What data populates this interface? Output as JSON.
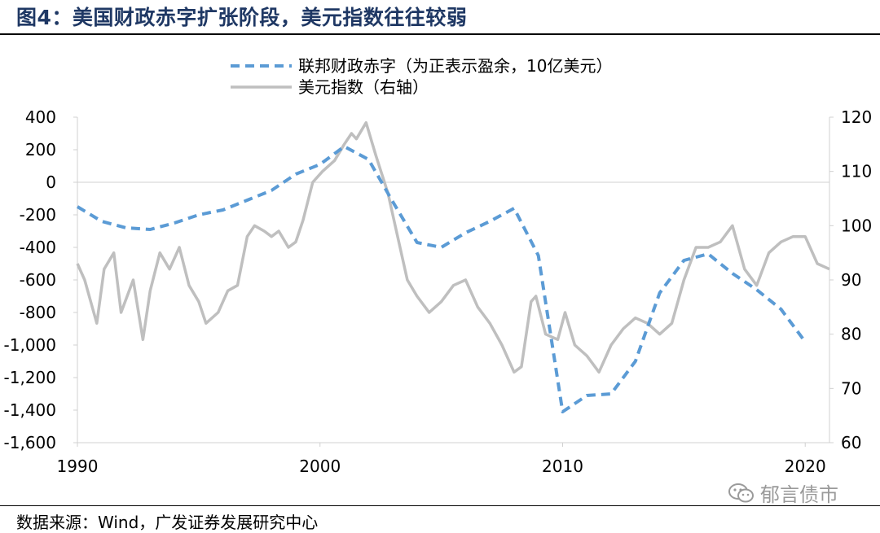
{
  "title": "图4：美国财政赤字扩张阶段，美元指数往往较弱",
  "source": "数据来源：Wind，广发证券发展研究中心",
  "watermark": "郁言债市",
  "chart_data": {
    "type": "line",
    "grid": false,
    "legend_position": "top-center",
    "x_ticks": [
      1990,
      2000,
      2010,
      2020
    ],
    "xlim": [
      1990,
      2021
    ],
    "y_left": {
      "ylim": [
        -1600,
        400
      ],
      "ticks": [
        400,
        200,
        0,
        -200,
        -400,
        -600,
        -800,
        -1000,
        -1200,
        -1400,
        -1600
      ],
      "tick_labels": [
        "400",
        "200",
        "0",
        "-200",
        "-400",
        "-600",
        "-800",
        "-1,000",
        "-1,200",
        "-1,400",
        "-1,600"
      ]
    },
    "y_right": {
      "ylim": [
        60,
        120
      ],
      "ticks": [
        120,
        110,
        100,
        90,
        80,
        70,
        60
      ],
      "tick_labels": [
        "120",
        "110",
        "100",
        "90",
        "80",
        "70",
        "60"
      ]
    },
    "series": [
      {
        "name": "联邦财政赤字（为正表示盈余，10亿美元）",
        "axis": "left",
        "color": "#5b9bd5",
        "style": "dashed",
        "x": [
          1990,
          1991,
          1992,
          1993,
          1994,
          1995,
          1996,
          1997,
          1998,
          1999,
          2000,
          2001,
          2002,
          2003,
          2004,
          2005,
          2006,
          2007,
          2008,
          2009,
          2010,
          2011,
          2012,
          2013,
          2014,
          2015,
          2016,
          2017,
          2018,
          2019,
          2020
        ],
        "values": [
          -150,
          -240,
          -280,
          -290,
          -250,
          -200,
          -170,
          -110,
          -50,
          50,
          110,
          220,
          140,
          -120,
          -370,
          -400,
          -310,
          -240,
          -160,
          -450,
          -1410,
          -1310,
          -1300,
          -1100,
          -680,
          -480,
          -440,
          -560,
          -660,
          -780,
          -980
        ]
      },
      {
        "name": "美元指数（右轴）",
        "axis": "right",
        "color": "#bfbfbf",
        "style": "solid",
        "x": [
          1990,
          1990.3,
          1990.8,
          1991.1,
          1991.5,
          1991.8,
          1992.3,
          1992.7,
          1993,
          1993.4,
          1993.8,
          1994.2,
          1994.6,
          1995.0,
          1995.3,
          1995.8,
          1996.2,
          1996.6,
          1997,
          1997.3,
          1997.7,
          1998.0,
          1998.3,
          1998.7,
          1999,
          1999.3,
          1999.7,
          2000.1,
          2000.6,
          2001,
          2001.3,
          2001.5,
          2001.9,
          2002.3,
          2002.8,
          2003.2,
          2003.6,
          2004,
          2004.5,
          2005.0,
          2005.5,
          2006,
          2006.5,
          2007,
          2007.5,
          2008.0,
          2008.3,
          2008.7,
          2008.9,
          2009.3,
          2009.8,
          2010.1,
          2010.5,
          2011.0,
          2011.5,
          2012.0,
          2012.5,
          2013.0,
          2013.5,
          2014.0,
          2014.5,
          2015.0,
          2015.5,
          2016.0,
          2016.5,
          2017.0,
          2017.5,
          2018.0,
          2018.5,
          2019.0,
          2019.5,
          2020.0,
          2020.5,
          2021.0
        ],
        "values": [
          93,
          90,
          82,
          92,
          95,
          84,
          90,
          79,
          88,
          95,
          92,
          96,
          89,
          86,
          82,
          84,
          88,
          89,
          98,
          100,
          99,
          98,
          99,
          96,
          97,
          101,
          108,
          110,
          112,
          115,
          117,
          116,
          119,
          113,
          106,
          98,
          90,
          87,
          84,
          86,
          89,
          90,
          85,
          82,
          78,
          73,
          74,
          86,
          87,
          80,
          79,
          84,
          78,
          76,
          73,
          78,
          81,
          83,
          82,
          80,
          82,
          90,
          96,
          96,
          97,
          100,
          92,
          89,
          95,
          97,
          98,
          98,
          93,
          92
        ]
      }
    ]
  }
}
